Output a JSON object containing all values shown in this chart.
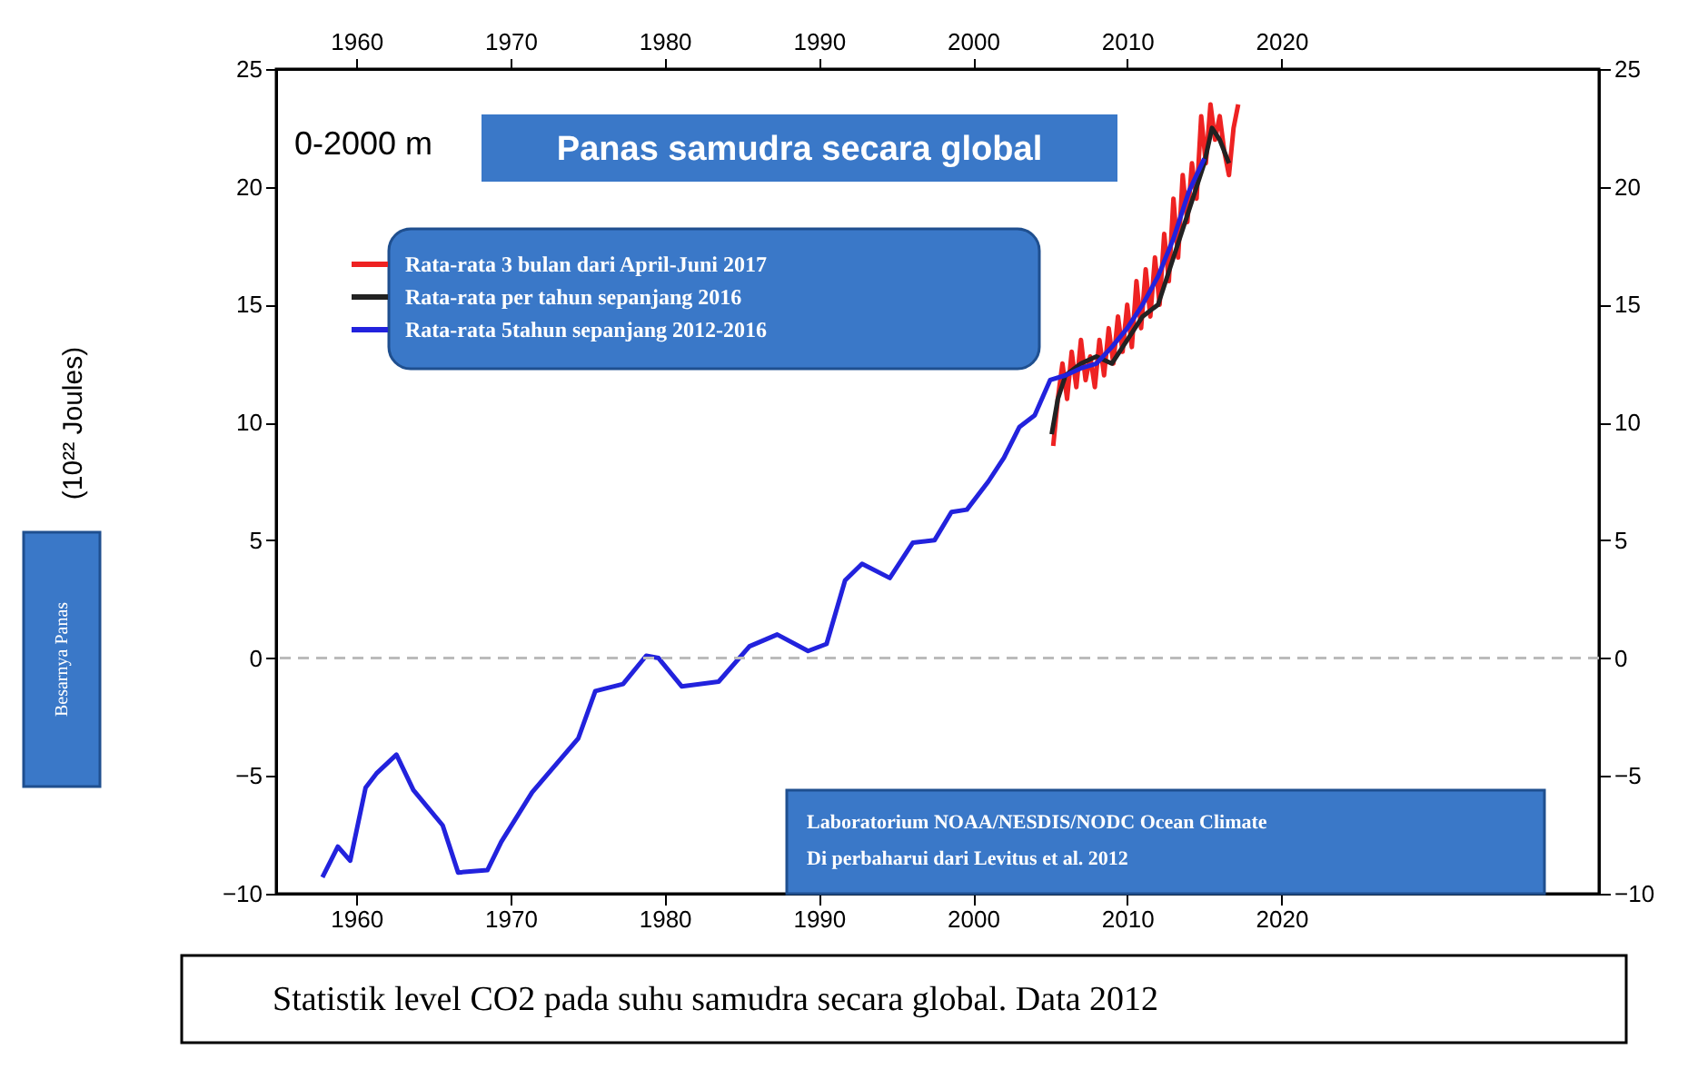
{
  "chart_data": {
    "type": "line",
    "title": "Panas samudra secara global",
    "ylabel": "(10²² Joules)",
    "annotations": [
      "0-2000 m",
      "Besarnya Panas",
      "Laboratorium NOAA/NESDIS/NODC Ocean Climate",
      "Di perbaharui dari Levitus et al. 2012",
      "Statistik level CO2 pada suhu samudra secara global. Data 2012"
    ],
    "xlim": [
      1954.8,
      2040.6
    ],
    "xticks": [
      1960,
      1970,
      1980,
      1990,
      2000,
      2010,
      2020
    ],
    "x2lim": [
      1954.8,
      2040.6
    ],
    "x2ticks": [
      1960,
      1970,
      1980,
      1990,
      2000,
      2010,
      2020
    ],
    "ylim": [
      -10,
      25
    ],
    "yticks": [
      -10,
      -5,
      0,
      5,
      10,
      15,
      20,
      25
    ],
    "y2lim": [
      -10,
      25
    ],
    "y2ticks": [
      -10,
      -5,
      0,
      5,
      10,
      15,
      20,
      25
    ],
    "grid": false,
    "legend": "top left",
    "line_style": "solid",
    "marker": "none",
    "ref_lines": [
      {
        "axis": "y",
        "value": 0,
        "color": "#bbbbbb",
        "line_style": "dashed"
      }
    ],
    "series": [
      {
        "name": "Rata-rata 5tahun sepanjang 2012-2016",
        "color": "#2222dd",
        "x": [
          1957.8,
          1958.8,
          1959.6,
          1960.6,
          1961.3,
          1962.6,
          1963.7,
          1965.6,
          1966.6,
          1968.5,
          1969.4,
          1971.4,
          1974.4,
          1975.5,
          1977.3,
          1978.8,
          1979.6,
          1981.1,
          1983.5,
          1985.5,
          1987.3,
          1989.3,
          1990.5,
          1991.7,
          1992.8,
          1994.6,
          1996.1,
          1997.5,
          1998.6,
          1999.6,
          2001,
          2002,
          2003,
          2004,
          2005,
          2006,
          2007,
          2008,
          2009,
          2010,
          2011,
          2012,
          2013,
          2014,
          2015
        ],
        "values": [
          -9.3,
          -8.0,
          -8.6,
          -5.5,
          -4.9,
          -4.1,
          -5.6,
          -7.1,
          -9.1,
          -9.0,
          -7.8,
          -5.7,
          -3.4,
          -1.4,
          -1.1,
          0.1,
          0.0,
          -1.2,
          -1.0,
          0.5,
          1.0,
          0.3,
          0.6,
          3.3,
          4.0,
          3.4,
          4.9,
          5.0,
          6.2,
          6.3,
          7.5,
          8.5,
          9.8,
          10.3,
          11.8,
          12.0,
          12.3,
          12.5,
          13.2,
          14.0,
          15.0,
          16.2,
          17.8,
          19.8,
          21.2
        ]
      },
      {
        "name": "Rata-rata per tahun sepanjang 2016",
        "color": "#222222",
        "x": [
          2005.1,
          2005.5,
          2006,
          2007,
          2008,
          2009,
          2010,
          2011,
          2012,
          2013,
          2014,
          2015,
          2015.5,
          2016,
          2016.6
        ],
        "values": [
          9.5,
          11,
          12,
          12.5,
          12.8,
          12.5,
          13.5,
          14.5,
          15,
          17,
          19,
          21,
          22.5,
          22,
          21
        ]
      },
      {
        "name": "Rata-rata 3 bulan dari April-Juni 2017",
        "color": "#ee2222",
        "x": [
          2005.2,
          2005.5,
          2005.8,
          2006.1,
          2006.4,
          2006.7,
          2007.0,
          2007.3,
          2007.6,
          2007.9,
          2008.2,
          2008.5,
          2008.8,
          2009.1,
          2009.4,
          2009.7,
          2010.0,
          2010.3,
          2010.6,
          2010.9,
          2011.2,
          2011.5,
          2011.8,
          2012.1,
          2012.4,
          2012.7,
          2013.0,
          2013.3,
          2013.6,
          2013.9,
          2014.2,
          2014.5,
          2014.8,
          2015.1,
          2015.4,
          2015.7,
          2016.0,
          2016.3,
          2016.6,
          2016.9,
          2017.2
        ],
        "values": [
          9,
          11,
          12.5,
          11,
          13,
          11.5,
          13.5,
          11.8,
          12.8,
          11.5,
          13.5,
          12,
          14,
          12.5,
          14.5,
          13,
          15,
          13.2,
          16,
          14,
          16.5,
          14.5,
          17,
          15,
          18,
          16,
          19.5,
          17,
          20.5,
          18.5,
          21,
          19.5,
          23,
          21,
          23.5,
          22,
          23,
          21.5,
          20.5,
          22.5,
          23.5
        ]
      }
    ]
  }
}
